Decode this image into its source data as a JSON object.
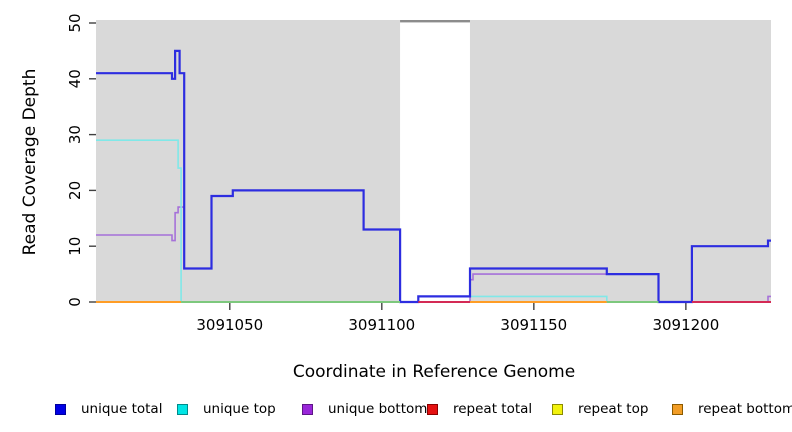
{
  "figure": {
    "background": "#ffffff"
  },
  "chart_data": {
    "type": "line",
    "title": "",
    "xlabel": "Coordinate in Reference Genome",
    "ylabel": "Read Coverage Depth",
    "xlim": [
      3091006,
      3091228
    ],
    "ylim": [
      0,
      50
    ],
    "x_ticks": [
      3091050,
      3091100,
      3091150,
      3091200
    ],
    "y_ticks": [
      0,
      10,
      20,
      30,
      40,
      50
    ],
    "grid": false,
    "panel_background": "#d9d9d9",
    "gap_region": {
      "x_start": 3091106,
      "x_end": 3091129,
      "fill": "#ffffff",
      "top_border_color": "#8c8c8c"
    },
    "series": [
      {
        "name": "unique total",
        "color": "#2d2de0",
        "width": 2.2,
        "steps": [
          [
            3091006,
            3091031,
            41
          ],
          [
            3091031,
            3091032,
            40
          ],
          [
            3091032,
            3091033.5,
            45
          ],
          [
            3091033.5,
            3091035,
            41
          ],
          [
            3091035,
            3091044,
            6
          ],
          [
            3091044,
            3091051,
            19
          ],
          [
            3091051,
            3091094,
            20
          ],
          [
            3091094,
            3091106,
            13
          ],
          [
            3091106,
            3091112,
            0
          ],
          [
            3091112,
            3091129,
            1
          ],
          [
            3091129,
            3091174,
            6
          ],
          [
            3091174,
            3091191,
            5
          ],
          [
            3091191,
            3091202,
            0
          ],
          [
            3091202,
            3091227,
            10
          ],
          [
            3091227,
            3091228,
            11
          ]
        ]
      },
      {
        "name": "unique top",
        "color": "#80e8e8",
        "width": 1.6,
        "steps": [
          [
            3091006,
            3091033,
            29
          ],
          [
            3091033,
            3091034,
            24
          ],
          [
            3091034,
            3091112,
            0
          ],
          [
            3091112,
            3091174,
            1
          ],
          [
            3091174,
            3091228,
            0
          ]
        ]
      },
      {
        "name": "unique bottom",
        "color": "#a671d9",
        "width": 1.6,
        "steps": [
          [
            3091006,
            3091031,
            12
          ],
          [
            3091031,
            3091032,
            11
          ],
          [
            3091032,
            3091033,
            16
          ],
          [
            3091033,
            3091035,
            17
          ],
          [
            3091035,
            3091044,
            6
          ],
          [
            3091044,
            3091051,
            19
          ],
          [
            3091051,
            3091094,
            20
          ],
          [
            3091094,
            3091106,
            13
          ],
          [
            3091106,
            3091129,
            0
          ],
          [
            3091129,
            3091130,
            4
          ],
          [
            3091130,
            3091191,
            5
          ],
          [
            3091191,
            3091227,
            0
          ],
          [
            3091227,
            3091228,
            1
          ]
        ]
      },
      {
        "name": "repeat total",
        "color": "#d42a55",
        "width": 1.6,
        "steps": [
          [
            3091006,
            3091228,
            0
          ]
        ]
      },
      {
        "name": "repeat top",
        "color": "#f2f20d",
        "width": 1.6,
        "steps": [
          [
            3091006,
            3091228,
            0
          ]
        ]
      },
      {
        "name": "repeat bottom",
        "color": "#ff9d26",
        "width": 1.6,
        "steps": [
          [
            3091006,
            3091228,
            0
          ]
        ]
      }
    ],
    "baseline_segments": [
      {
        "x_start": 3091006,
        "x_end": 3091034,
        "color": "#ff9d26"
      },
      {
        "x_start": 3091034,
        "x_end": 3091106,
        "color": "#7dc87d"
      },
      {
        "x_start": 3091106,
        "x_end": 3091112,
        "color": "#2d2de0"
      },
      {
        "x_start": 3091112,
        "x_end": 3091129,
        "color": "#d42a55"
      },
      {
        "x_start": 3091129,
        "x_end": 3091174,
        "color": "#ff9d26"
      },
      {
        "x_start": 3091174,
        "x_end": 3091191,
        "color": "#7dc87d"
      },
      {
        "x_start": 3091191,
        "x_end": 3091202,
        "color": "#2d2de0"
      },
      {
        "x_start": 3091202,
        "x_end": 3091228,
        "color": "#d42a55"
      }
    ],
    "legend_position": "bottom"
  },
  "legend": {
    "items": [
      {
        "label": "unique total",
        "fill": "#0000e5",
        "border": "#00009d"
      },
      {
        "label": "unique top",
        "fill": "#00e5e5",
        "border": "#008b8b"
      },
      {
        "label": "unique bottom",
        "fill": "#9926d9",
        "border": "#5e1687"
      },
      {
        "label": "repeat total",
        "fill": "#e51111",
        "border": "#8b0000"
      },
      {
        "label": "repeat top",
        "fill": "#f2f20d",
        "border": "#8b8b00"
      },
      {
        "label": "repeat bottom",
        "fill": "#f29d26",
        "border": "#8b5a00"
      }
    ]
  }
}
